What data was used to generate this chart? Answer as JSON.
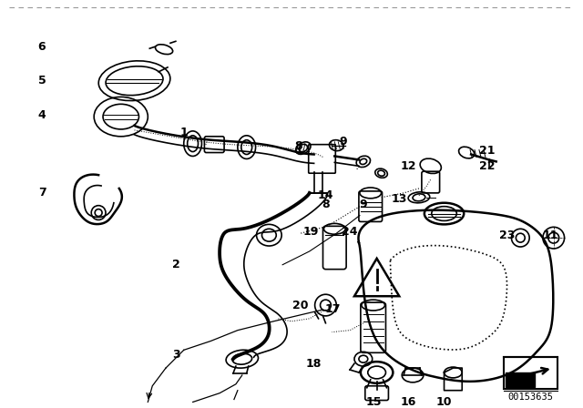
{
  "bg_color": "#ffffff",
  "part_number": "00153635",
  "line_color": "#000000",
  "label_color": "#000000",
  "dashed_border_color": "#999999",
  "figsize": [
    6.4,
    4.48
  ],
  "dpi": 100
}
